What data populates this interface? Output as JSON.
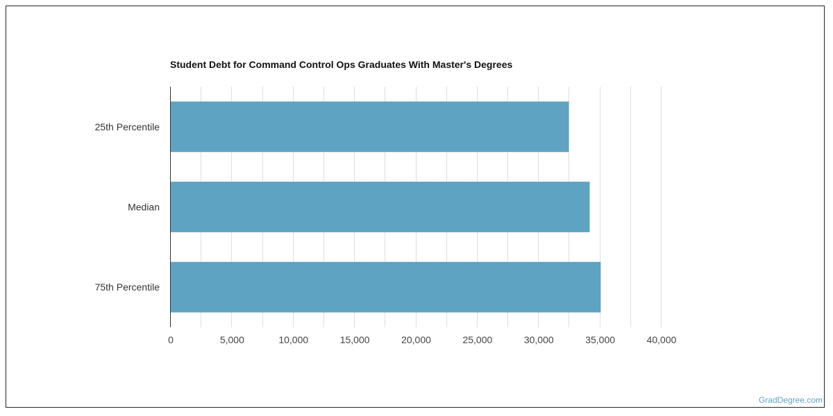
{
  "chart_data": {
    "type": "bar",
    "orientation": "horizontal",
    "title": "Student Debt for Command Control Ops Graduates With Master's Degrees",
    "categories": [
      "25th Percentile",
      "Median",
      "75th Percentile"
    ],
    "values": [
      32500,
      34200,
      35100
    ],
    "xlim": [
      0,
      40000
    ],
    "x_ticks": [
      0,
      5000,
      10000,
      15000,
      20000,
      25000,
      30000,
      35000,
      40000
    ],
    "x_tick_labels": [
      "0",
      "5,000",
      "10,000",
      "15,000",
      "20,000",
      "25,000",
      "30,000",
      "35,000",
      "40,000"
    ],
    "grid": true,
    "bar_color": "#5ea3c1"
  },
  "source": "GradDegree.com"
}
